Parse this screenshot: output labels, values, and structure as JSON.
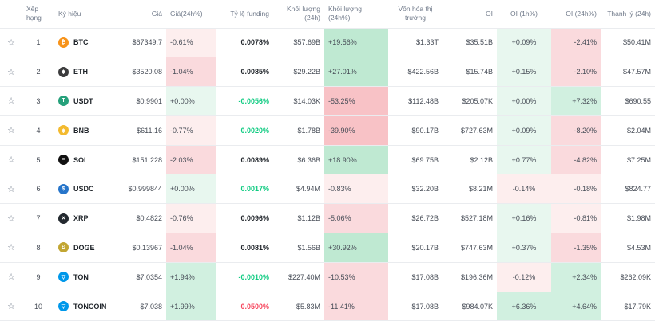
{
  "headers": {
    "rank": "Xếp hạng",
    "symbol": "Ký hiệu",
    "price": "Giá",
    "price_change": "Giá(24h%)",
    "funding": "Tỷ lệ funding",
    "volume": "Khối lượng (24h)",
    "volume_change": "Khối lượng (24h%)",
    "mcap": "Vốn hóa thị trường",
    "oi": "OI",
    "oi_1h": "OI (1h%)",
    "oi_24h": "OI (24h%)",
    "liq": "Thanh lý (24h)"
  },
  "rows": [
    {
      "rank": "1",
      "symbol": "BTC",
      "icon": "btc-icon",
      "color": "#f7931a",
      "glyph": "₿",
      "price": "$67349.7",
      "price_change": "-0.61%",
      "funding": "0.0078%",
      "volume": "$57.69B",
      "volume_change": "+19.56%",
      "mcap": "$1.33T",
      "oi": "$35.51B",
      "oi_1h": "+0.09%",
      "oi_24h": "-2.41%",
      "liq": "$50.41M"
    },
    {
      "rank": "2",
      "symbol": "ETH",
      "icon": "eth-icon",
      "color": "#3c3c3d",
      "glyph": "◆",
      "price": "$3520.08",
      "price_change": "-1.04%",
      "funding": "0.0085%",
      "volume": "$29.22B",
      "volume_change": "+27.01%",
      "mcap": "$422.56B",
      "oi": "$15.74B",
      "oi_1h": "+0.15%",
      "oi_24h": "-2.10%",
      "liq": "$47.57M"
    },
    {
      "rank": "3",
      "symbol": "USDT",
      "icon": "usdt-icon",
      "color": "#26a17b",
      "glyph": "T",
      "price": "$0.9901",
      "price_change": "+0.00%",
      "funding": "-0.0056%",
      "volume": "$14.03K",
      "volume_change": "-53.25%",
      "mcap": "$112.48B",
      "oi": "$205.07K",
      "oi_1h": "+0.00%",
      "oi_24h": "+7.32%",
      "liq": "$690.55"
    },
    {
      "rank": "4",
      "symbol": "BNB",
      "icon": "bnb-icon",
      "color": "#f3ba2f",
      "glyph": "◈",
      "price": "$611.16",
      "price_change": "-0.77%",
      "funding": "0.0020%",
      "volume": "$1.78B",
      "volume_change": "-39.90%",
      "mcap": "$90.17B",
      "oi": "$727.63M",
      "oi_1h": "+0.09%",
      "oi_24h": "-8.20%",
      "liq": "$2.04M"
    },
    {
      "rank": "5",
      "symbol": "SOL",
      "icon": "sol-icon",
      "color": "#111111",
      "glyph": "≡",
      "price": "$151.228",
      "price_change": "-2.03%",
      "funding": "0.0089%",
      "volume": "$6.36B",
      "volume_change": "+18.90%",
      "mcap": "$69.75B",
      "oi": "$2.12B",
      "oi_1h": "+0.77%",
      "oi_24h": "-4.82%",
      "liq": "$7.25M"
    },
    {
      "rank": "6",
      "symbol": "USDC",
      "icon": "usdc-icon",
      "color": "#2775ca",
      "glyph": "$",
      "price": "$0.999844",
      "price_change": "+0.00%",
      "funding": "0.0017%",
      "volume": "$4.94M",
      "volume_change": "-0.83%",
      "mcap": "$32.20B",
      "oi": "$8.21M",
      "oi_1h": "-0.14%",
      "oi_24h": "-0.18%",
      "liq": "$824.77"
    },
    {
      "rank": "7",
      "symbol": "XRP",
      "icon": "xrp-icon",
      "color": "#23292f",
      "glyph": "✕",
      "price": "$0.4822",
      "price_change": "-0.76%",
      "funding": "0.0096%",
      "volume": "$1.12B",
      "volume_change": "-5.06%",
      "mcap": "$26.72B",
      "oi": "$527.18M",
      "oi_1h": "+0.16%",
      "oi_24h": "-0.81%",
      "liq": "$1.98M"
    },
    {
      "rank": "8",
      "symbol": "DOGE",
      "icon": "doge-icon",
      "color": "#c2a633",
      "glyph": "Ð",
      "price": "$0.13967",
      "price_change": "-1.04%",
      "funding": "0.0081%",
      "volume": "$1.56B",
      "volume_change": "+30.92%",
      "mcap": "$20.17B",
      "oi": "$747.63M",
      "oi_1h": "+0.37%",
      "oi_24h": "-1.35%",
      "liq": "$4.53M"
    },
    {
      "rank": "9",
      "symbol": "TON",
      "icon": "ton-icon",
      "color": "#0098ea",
      "glyph": "▽",
      "price": "$7.0354",
      "price_change": "+1.94%",
      "funding": "-0.0010%",
      "volume": "$227.40M",
      "volume_change": "-10.53%",
      "mcap": "$17.08B",
      "oi": "$196.36M",
      "oi_1h": "-0.12%",
      "oi_24h": "+2.34%",
      "liq": "$262.09K"
    },
    {
      "rank": "10",
      "symbol": "TONCOIN",
      "icon": "toncoin-icon",
      "color": "#0098ea",
      "glyph": "▽",
      "price": "$7.038",
      "price_change": "+1.99%",
      "funding": "0.0500%",
      "volume": "$5.83M",
      "volume_change": "-11.41%",
      "mcap": "$17.08B",
      "oi": "$984.07K",
      "oi_1h": "+6.36%",
      "oi_24h": "+4.64%",
      "liq": "$17.79K"
    }
  ]
}
